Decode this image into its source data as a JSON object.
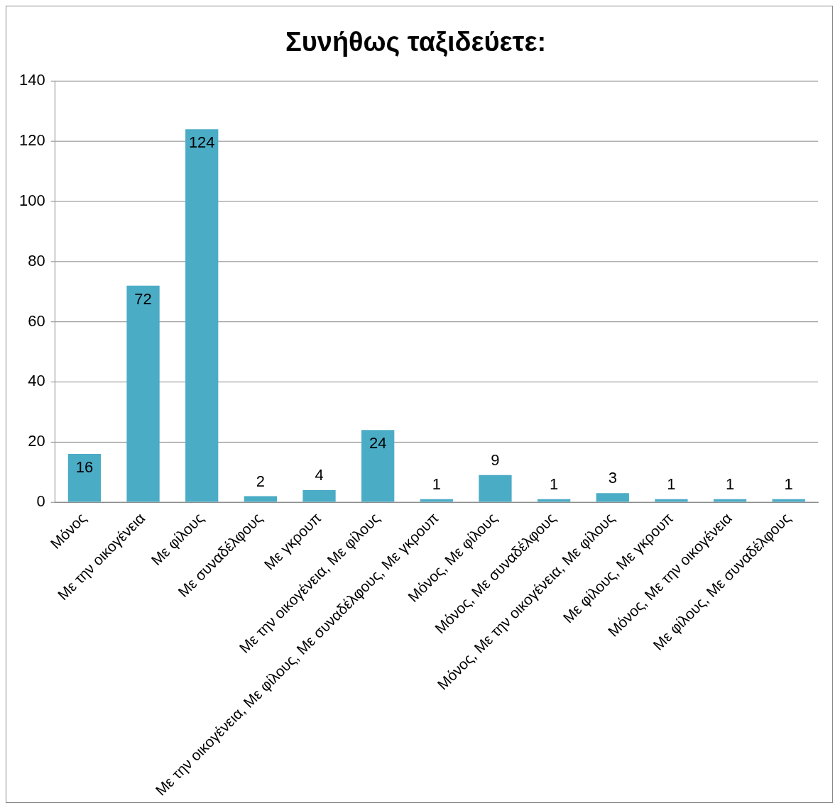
{
  "chart_data": {
    "type": "bar",
    "title": "Συνήθως ταξιδεύετε:",
    "categories": [
      "Μόνος",
      "Με την οικογένεια",
      "Με φίλους",
      "Με συναδέλφους",
      "Με γκρουπ",
      "Με την οικογένεια, Με φίλους",
      "Με την οικογένεια, Με φίλους, Με συναδέλφους, Με γκρουπ",
      "Μόνος, Με φίλους",
      "Μόνος, Με συναδέλφους",
      "Μόνος, Με την οικογένεια, Με φίλους",
      "Με φίλους, Με γκρουπ",
      "Μόνος, Με την οικογένεια",
      "Με φίλους, Με συναδέλφους"
    ],
    "values": [
      16,
      72,
      124,
      2,
      4,
      24,
      1,
      9,
      1,
      3,
      1,
      1,
      1
    ],
    "color": "#4bacc6",
    "ylim": [
      0,
      140
    ],
    "yticks": [
      0,
      20,
      40,
      60,
      80,
      100,
      120,
      140
    ],
    "grid": "y",
    "data_labels": true,
    "legend": false
  }
}
